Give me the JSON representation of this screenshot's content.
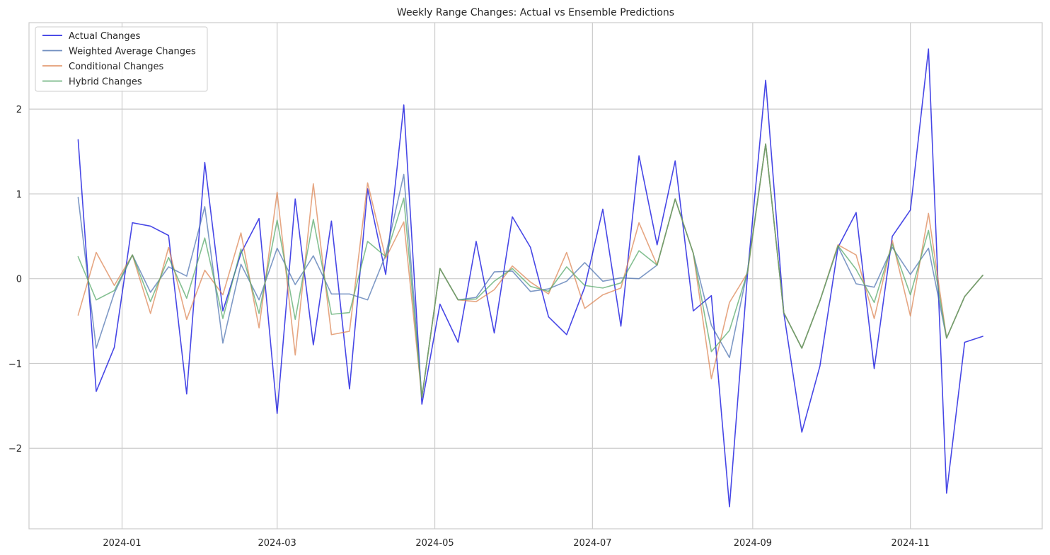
{
  "chart_data": {
    "type": "line",
    "title": "Weekly Range Changes: Actual vs Ensemble Predictions",
    "xlabel": "",
    "ylabel": "",
    "x_axis": {
      "type": "date",
      "range": [
        "2023-11-26",
        "2024-12-22"
      ],
      "tick_values": [
        "2024-01-01",
        "2024-03-01",
        "2024-05-01",
        "2024-07-01",
        "2024-09-01",
        "2024-11-01"
      ],
      "tick_labels": [
        "2024-01",
        "2024-03",
        "2024-05",
        "2024-07",
        "2024-09",
        "2024-11"
      ]
    },
    "y_axis": {
      "range": [
        -2.95,
        3.02
      ],
      "tick_values": [
        -2,
        -1,
        0,
        1,
        2
      ],
      "tick_labels": [
        "−2",
        "−1",
        "0",
        "1",
        "2"
      ]
    },
    "grid": true,
    "legend_position": "top-left",
    "x": [
      "2023-12-15",
      "2023-12-22",
      "2023-12-29",
      "2024-01-05",
      "2024-01-12",
      "2024-01-19",
      "2024-01-26",
      "2024-02-02",
      "2024-02-09",
      "2024-02-16",
      "2024-02-23",
      "2024-03-01",
      "2024-03-08",
      "2024-03-15",
      "2024-03-22",
      "2024-03-29",
      "2024-04-05",
      "2024-04-12",
      "2024-04-19",
      "2024-04-26",
      "2024-05-03",
      "2024-05-10",
      "2024-05-17",
      "2024-05-24",
      "2024-05-31",
      "2024-06-07",
      "2024-06-14",
      "2024-06-21",
      "2024-06-28",
      "2024-07-05",
      "2024-07-12",
      "2024-07-19",
      "2024-07-26",
      "2024-08-02",
      "2024-08-09",
      "2024-08-16",
      "2024-08-23",
      "2024-08-30",
      "2024-09-06",
      "2024-09-13",
      "2024-09-20",
      "2024-09-27",
      "2024-10-04",
      "2024-10-11",
      "2024-10-18",
      "2024-10-25",
      "2024-11-01",
      "2024-11-08",
      "2024-11-15",
      "2024-11-22",
      "2024-11-29"
    ],
    "series": [
      {
        "name": "Actual Changes",
        "color": "#0000dd",
        "values": [
          1.64,
          -1.33,
          -0.81,
          0.66,
          0.62,
          0.51,
          -1.36,
          1.37,
          -0.38,
          0.3,
          0.71,
          -1.59,
          0.94,
          -0.78,
          0.68,
          -1.3,
          1.06,
          0.05,
          2.05,
          -1.48,
          -0.3,
          -0.75,
          0.44,
          -0.64,
          0.73,
          0.37,
          -0.45,
          -0.66,
          -0.1,
          0.82,
          -0.56,
          1.45,
          0.4,
          1.39,
          -0.38,
          -0.2,
          -2.69,
          0.06,
          2.34,
          -0.4,
          -1.81,
          -1.03,
          0.37,
          0.78,
          -1.06,
          0.5,
          0.81,
          2.71,
          -2.53,
          -0.75,
          -0.68
        ]
      },
      {
        "name": "Weighted Average Changes",
        "color": "#4c72b0",
        "values": [
          0.96,
          -0.82,
          -0.17,
          0.28,
          -0.16,
          0.14,
          0.03,
          0.85,
          -0.76,
          0.17,
          -0.25,
          0.36,
          -0.07,
          0.27,
          -0.18,
          -0.18,
          -0.25,
          0.28,
          1.23,
          -1.4,
          0.12,
          -0.25,
          -0.22,
          0.08,
          0.09,
          -0.15,
          -0.12,
          -0.03,
          0.19,
          -0.03,
          0.01,
          0.0,
          0.16,
          0.94,
          0.3,
          -0.55,
          -0.93,
          0.1,
          1.59,
          -0.4,
          -0.82,
          -0.26,
          0.38,
          -0.06,
          -0.1,
          0.37,
          0.05,
          0.36,
          -0.7,
          -0.21,
          0.04
        ]
      },
      {
        "name": "Conditional Changes",
        "color": "#dd8452",
        "values": [
          -0.43,
          0.31,
          -0.08,
          0.28,
          -0.41,
          0.37,
          -0.48,
          0.1,
          -0.19,
          0.54,
          -0.58,
          1.02,
          -0.9,
          1.12,
          -0.66,
          -0.62,
          1.13,
          0.24,
          0.67,
          -1.4,
          0.12,
          -0.25,
          -0.27,
          -0.13,
          0.15,
          -0.04,
          -0.18,
          0.31,
          -0.35,
          -0.19,
          -0.11,
          0.66,
          0.16,
          0.94,
          0.3,
          -1.18,
          -0.28,
          0.07,
          1.59,
          -0.4,
          -0.82,
          -0.26,
          0.4,
          0.28,
          -0.47,
          0.45,
          -0.44,
          0.77,
          -0.7,
          -0.21,
          0.04
        ]
      },
      {
        "name": "Hybrid Changes",
        "color": "#55a868",
        "values": [
          0.26,
          -0.25,
          -0.14,
          0.28,
          -0.27,
          0.25,
          -0.23,
          0.48,
          -0.47,
          0.35,
          -0.41,
          0.69,
          -0.48,
          0.7,
          -0.42,
          -0.4,
          0.44,
          0.26,
          0.95,
          -1.4,
          0.12,
          -0.25,
          -0.24,
          -0.03,
          0.12,
          -0.09,
          -0.15,
          0.14,
          -0.08,
          -0.11,
          -0.05,
          0.33,
          0.16,
          0.94,
          0.3,
          -0.86,
          -0.61,
          0.08,
          1.59,
          -0.4,
          -0.82,
          -0.26,
          0.39,
          0.11,
          -0.28,
          0.41,
          -0.19,
          0.57,
          -0.7,
          -0.21,
          0.04
        ]
      }
    ]
  }
}
